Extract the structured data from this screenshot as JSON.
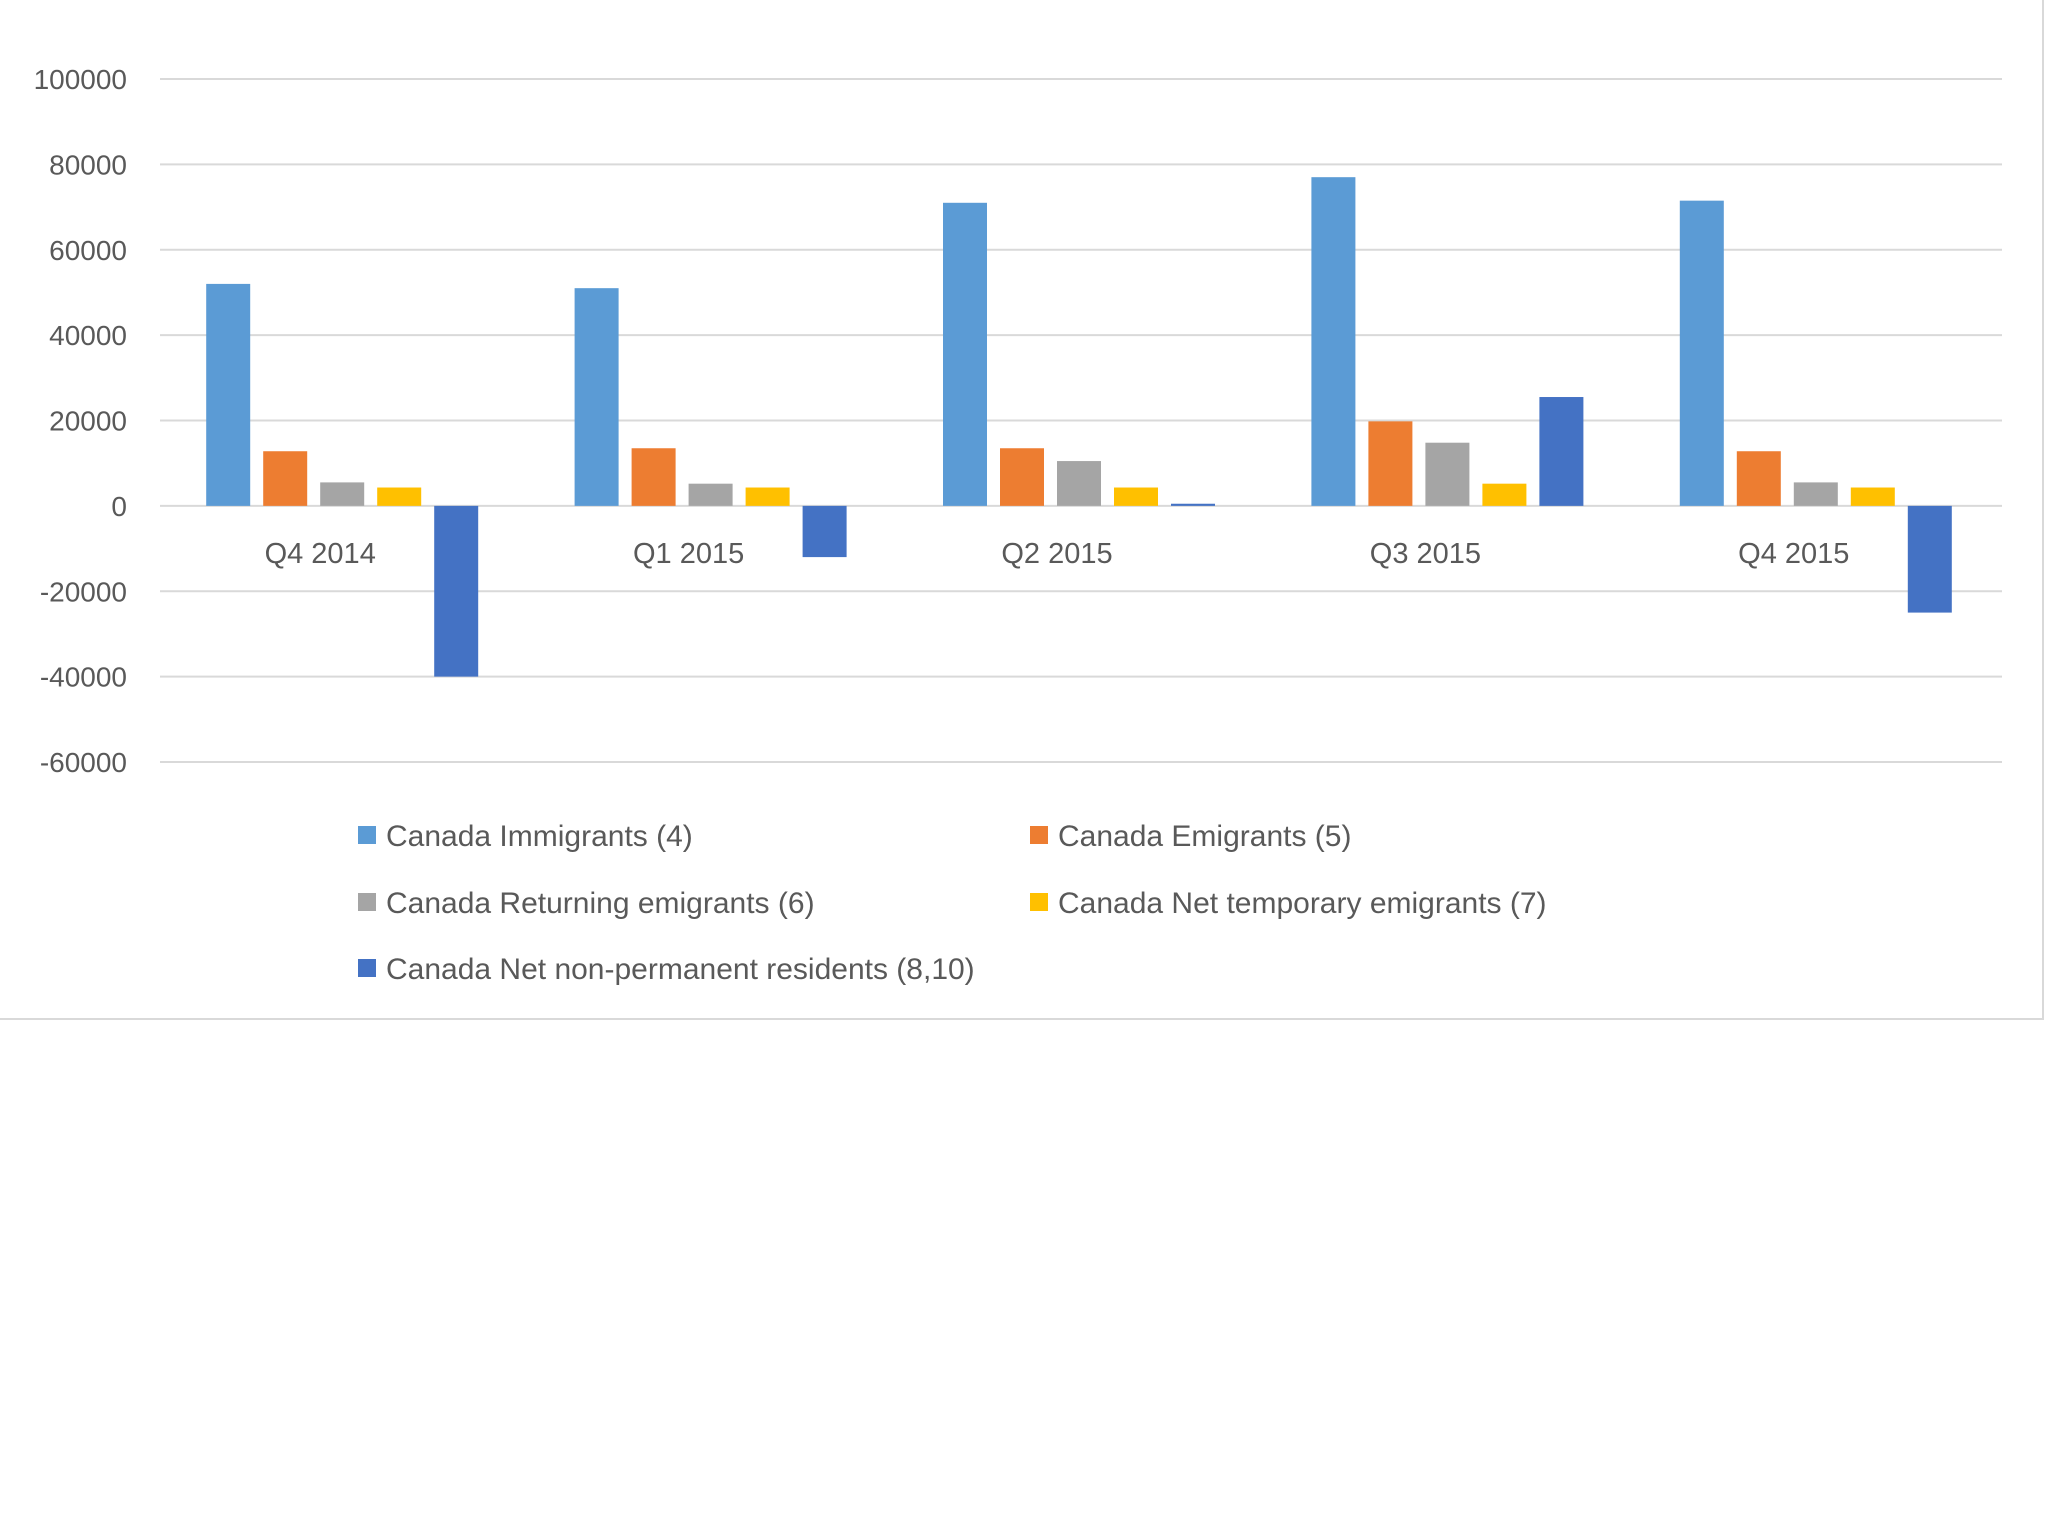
{
  "chart_data": {
    "type": "bar",
    "title": "",
    "xlabel": "",
    "ylabel": "",
    "categories": [
      "Q4 2014",
      "Q1 2015",
      "Q2 2015",
      "Q3 2015",
      "Q4 2015"
    ],
    "series": [
      {
        "name": "Canada Immigrants (4)",
        "color": "#5b9bd5",
        "values": [
          52000,
          51000,
          71000,
          77000,
          71500
        ]
      },
      {
        "name": "Canada Emigrants (5)",
        "color": "#ed7d31",
        "values": [
          12800,
          13500,
          13500,
          19800,
          12800
        ]
      },
      {
        "name": "Canada Returning emigrants (6)",
        "color": "#a5a5a5",
        "values": [
          5500,
          5200,
          10500,
          14800,
          5500
        ]
      },
      {
        "name": "Canada Net temporary emigrants (7)",
        "color": "#ffc000",
        "values": [
          4300,
          4300,
          4300,
          5200,
          4300
        ]
      },
      {
        "name": "Canada Net non-permanent residents (8,10)",
        "color": "#4472c4",
        "values": [
          -40000,
          -12000,
          500,
          25500,
          -25000
        ]
      }
    ],
    "ylim": [
      -60000,
      100000
    ],
    "yticks": [
      100000,
      80000,
      60000,
      40000,
      20000,
      0,
      -20000,
      -40000,
      -60000
    ],
    "grid": true,
    "legend_position": "bottom"
  }
}
